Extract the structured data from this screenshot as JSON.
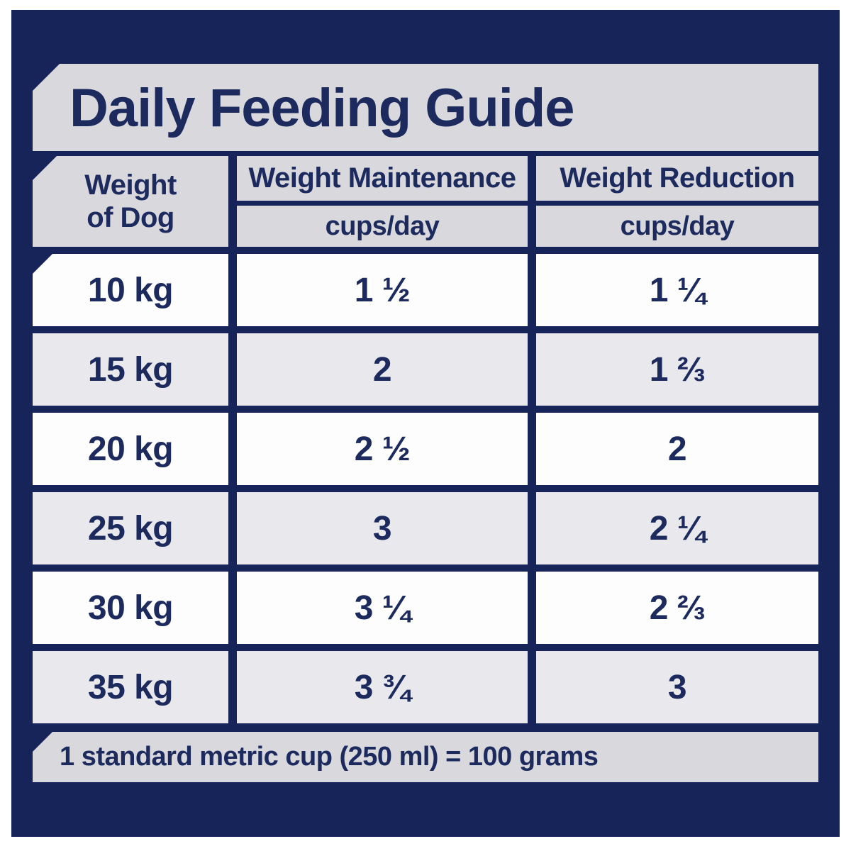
{
  "title": "Daily Feeding Guide",
  "colors": {
    "navy": "#17245a",
    "text_navy": "#1c2a5e",
    "banner_gray": "#d9d9dd",
    "row_white": "#fdfdfe",
    "row_alt_gray": "#e9e9ed",
    "page_bg": "#ffffff"
  },
  "table": {
    "weight_header": {
      "line1": "Weight",
      "line2": "of Dog"
    },
    "columns": [
      {
        "label": "Weight Maintenance",
        "unit": "cups/day"
      },
      {
        "label": "Weight Reduction",
        "unit": "cups/day"
      }
    ],
    "rows": [
      {
        "weight": "10 kg",
        "maintenance": "1 ½",
        "reduction": "1 ¼"
      },
      {
        "weight": "15 kg",
        "maintenance": "2",
        "reduction": "1 ⅔"
      },
      {
        "weight": "20 kg",
        "maintenance": "2 ½",
        "reduction": "2"
      },
      {
        "weight": "25 kg",
        "maintenance": "3",
        "reduction": "2 ¼"
      },
      {
        "weight": "30 kg",
        "maintenance": "3 ¼",
        "reduction": "2 ⅔"
      },
      {
        "weight": "35 kg",
        "maintenance": "3 ¾",
        "reduction": "3"
      }
    ]
  },
  "footer_note": "1 standard metric cup (250 ml) = 100 grams"
}
